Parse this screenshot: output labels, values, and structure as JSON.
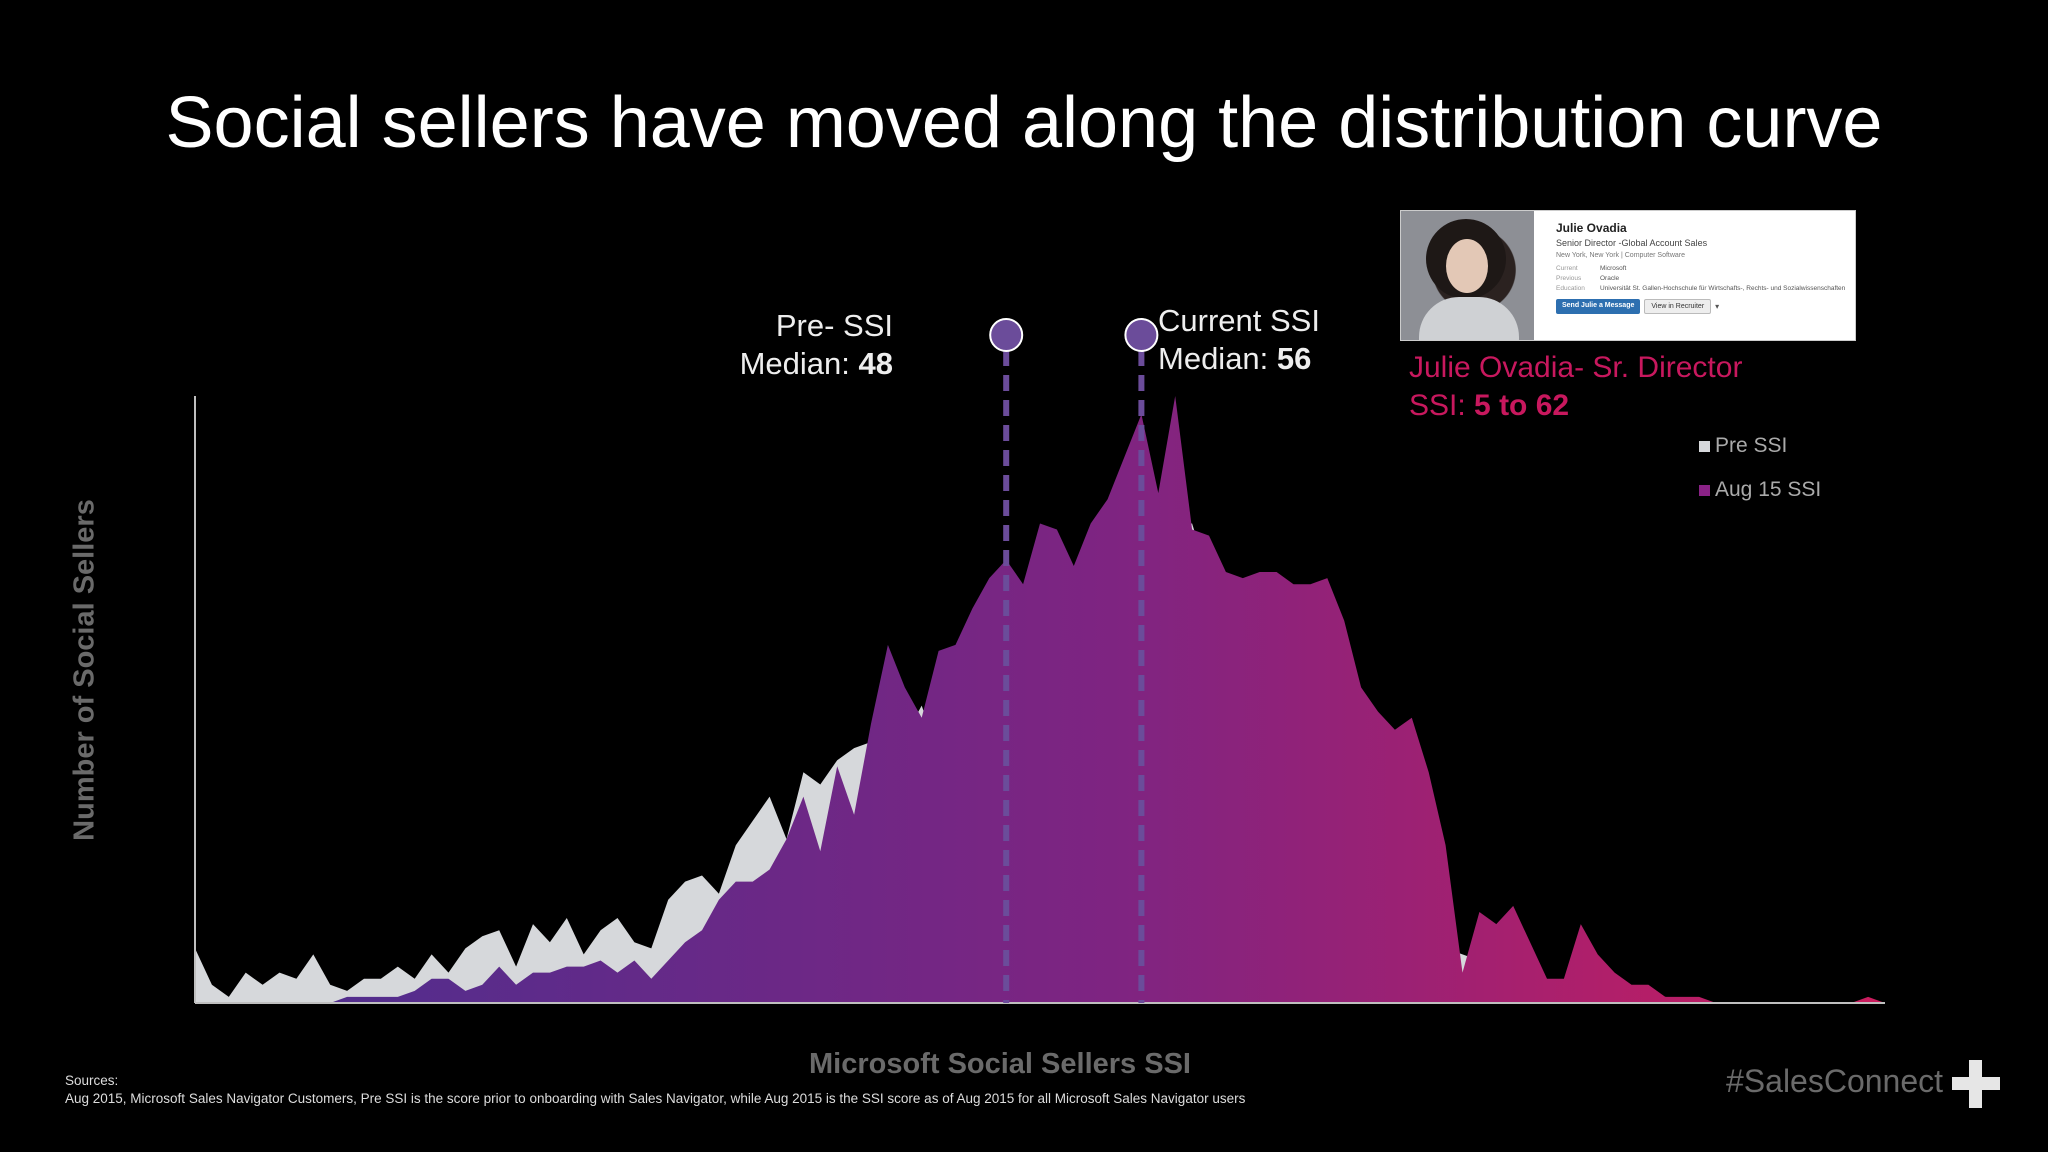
{
  "title": "Social sellers have moved along the distribution curve",
  "medians": {
    "pre": {
      "line1": "Pre- SSI",
      "label": "Median:",
      "value": "48"
    },
    "current": {
      "line1": "Current SSI",
      "label": "Median:",
      "value": "56"
    }
  },
  "profile": {
    "name": "Julie Ovadia",
    "headline": "Senior Director -Global Account Sales",
    "location": "New York, New York | Computer Software",
    "rows": [
      {
        "key": "Current",
        "value": "Microsoft"
      },
      {
        "key": "Previous",
        "value": "Oracle"
      },
      {
        "key": "Education",
        "value": "Universität St. Gallen-Hochschule für Wirtschafts-, Rechts- und Sozialwissenschaften"
      }
    ],
    "message_button": "Send Julie a Message",
    "recruiter_button": "View in Recruiter"
  },
  "julie": {
    "caption": "Julie Ovadia- Sr. Director",
    "ssi_label": "SSI:",
    "ssi_value": "5 to 62"
  },
  "sources": {
    "heading": "Sources:",
    "text": "Aug 2015, Microsoft Sales Navigator Customers, Pre SSI  is the score prior to onboarding with Sales Navigator, while Aug 2015 is the SSI score  as of Aug 2015 for all Microsoft Sales Navigator users"
  },
  "hashtag": "#SalesConnect",
  "colors": {
    "pre_series": "#d6d8db",
    "gradient_start": "#4a2f8f",
    "gradient_mid": "#7f2481",
    "gradient_end": "#cc1c5d",
    "median_marker": "#6b4c9a",
    "julie_text": "#c8185e"
  },
  "chart_data": {
    "type": "area",
    "xlabel": "Microsoft Social Sellers SSI",
    "ylabel": "Number of Social Sellers",
    "xlim": [
      0,
      100
    ],
    "ylim": [
      0,
      100
    ],
    "legend_position": "top-right",
    "medians": {
      "pre": 48,
      "current": 56
    },
    "series": [
      {
        "name": "Pre SSI",
        "color": "#d6d8db",
        "x": [
          0,
          1,
          2,
          3,
          4,
          5,
          6,
          7,
          8,
          9,
          10,
          11,
          12,
          13,
          14,
          15,
          16,
          17,
          18,
          19,
          20,
          21,
          22,
          23,
          24,
          25,
          26,
          27,
          28,
          29,
          30,
          31,
          32,
          33,
          34,
          35,
          36,
          37,
          38,
          39,
          40,
          41,
          42,
          43,
          44,
          45,
          46,
          47,
          48,
          49,
          50,
          51,
          52,
          53,
          54,
          55,
          56,
          57,
          58,
          59,
          60,
          61,
          62,
          63,
          64,
          65,
          66,
          67,
          68,
          69,
          70,
          71,
          72,
          73,
          74,
          75,
          76,
          77,
          78,
          79,
          80,
          81,
          82,
          83,
          84,
          85,
          86,
          87,
          88,
          89,
          90,
          91,
          92,
          93,
          94,
          95,
          96,
          97,
          98,
          99,
          100
        ],
        "values": [
          9,
          3,
          1,
          5,
          3,
          5,
          4,
          8,
          3,
          2,
          4,
          4,
          6,
          4,
          8,
          5,
          9,
          11,
          12,
          6,
          13,
          10,
          14,
          8,
          12,
          14,
          10,
          9,
          17,
          20,
          21,
          18,
          26,
          30,
          34,
          27,
          38,
          36,
          40,
          42,
          43,
          42,
          44,
          49,
          41,
          46,
          55,
          57,
          58,
          56,
          58,
          63,
          62,
          48,
          70,
          80,
          81,
          78,
          79,
          79,
          70,
          67,
          62,
          54,
          45,
          37,
          31,
          26,
          20,
          17,
          14,
          13,
          11,
          10,
          9,
          8,
          7,
          6,
          5,
          4,
          3,
          3,
          2,
          2,
          1,
          1,
          1,
          1,
          0,
          0,
          0,
          0,
          0,
          0,
          0,
          0,
          0,
          0,
          0,
          0,
          0
        ]
      },
      {
        "name": "Aug 15 SSI",
        "color": "#7f2481",
        "x": [
          0,
          1,
          2,
          3,
          4,
          5,
          6,
          7,
          8,
          9,
          10,
          11,
          12,
          13,
          14,
          15,
          16,
          17,
          18,
          19,
          20,
          21,
          22,
          23,
          24,
          25,
          26,
          27,
          28,
          29,
          30,
          31,
          32,
          33,
          34,
          35,
          36,
          37,
          38,
          39,
          40,
          41,
          42,
          43,
          44,
          45,
          46,
          47,
          48,
          49,
          50,
          51,
          52,
          53,
          54,
          55,
          56,
          57,
          58,
          59,
          60,
          61,
          62,
          63,
          64,
          65,
          66,
          67,
          68,
          69,
          70,
          71,
          72,
          73,
          74,
          75,
          76,
          77,
          78,
          79,
          80,
          81,
          82,
          83,
          84,
          85,
          86,
          87,
          88,
          89,
          90,
          91,
          92,
          93,
          94,
          95,
          96,
          97,
          98,
          99,
          100
        ],
        "values": [
          0,
          0,
          0,
          0,
          0,
          0,
          0,
          0,
          0,
          1,
          1,
          1,
          1,
          2,
          4,
          4,
          2,
          3,
          6,
          3,
          5,
          5,
          6,
          6,
          7,
          5,
          7,
          4,
          7,
          10,
          12,
          17,
          20,
          20,
          22,
          27,
          34,
          25,
          39,
          31,
          46,
          59,
          52,
          47,
          58,
          59,
          65,
          70,
          73,
          69,
          79,
          78,
          72,
          79,
          83,
          90,
          97,
          84,
          100,
          78,
          77,
          71,
          70,
          71,
          71,
          69,
          69,
          70,
          63,
          52,
          48,
          45,
          47,
          38,
          26,
          5,
          15,
          13,
          16,
          10,
          4,
          4,
          13,
          8,
          5,
          3,
          3,
          1,
          1,
          1,
          0,
          0,
          0,
          0,
          0,
          0,
          0,
          0,
          0,
          1,
          0
        ]
      }
    ]
  }
}
